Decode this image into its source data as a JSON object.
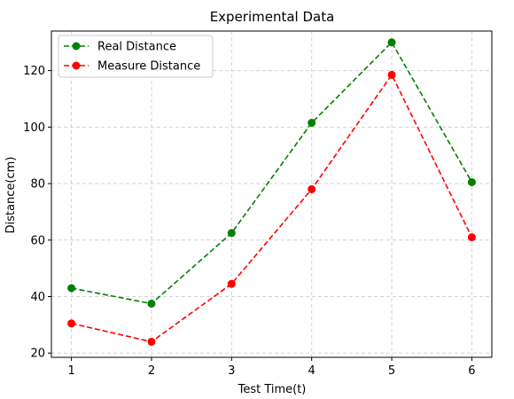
{
  "chart_data": {
    "type": "line",
    "title": "Experimental Data",
    "xlabel": "Test Time(t)",
    "ylabel": "Distance(cm)",
    "x": [
      1,
      2,
      3,
      4,
      5,
      6
    ],
    "xlim": [
      0.75,
      6.25
    ],
    "ylim": [
      18.5,
      134
    ],
    "xticks": [
      1,
      2,
      3,
      4,
      5,
      6
    ],
    "yticks": [
      20,
      40,
      60,
      80,
      100,
      120
    ],
    "grid": true,
    "legend_position": "top-left",
    "series": [
      {
        "name": "Real Distance",
        "values": [
          43,
          37.5,
          62.5,
          101.5,
          130,
          80.5
        ],
        "color": "#008000",
        "linestyle": "dashed",
        "marker": "circle"
      },
      {
        "name": "Measure Distance",
        "values": [
          30.5,
          24,
          44.5,
          78,
          118.5,
          61
        ],
        "color": "#ff0000",
        "linestyle": "dashed",
        "marker": "circle"
      }
    ]
  }
}
